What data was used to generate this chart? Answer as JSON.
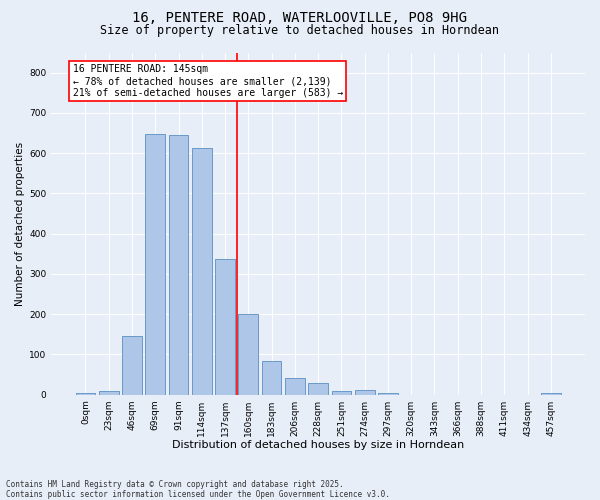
{
  "title1": "16, PENTERE ROAD, WATERLOOVILLE, PO8 9HG",
  "title2": "Size of property relative to detached houses in Horndean",
  "xlabel": "Distribution of detached houses by size in Horndean",
  "ylabel": "Number of detached properties",
  "bar_labels": [
    "0sqm",
    "23sqm",
    "46sqm",
    "69sqm",
    "91sqm",
    "114sqm",
    "137sqm",
    "160sqm",
    "183sqm",
    "206sqm",
    "228sqm",
    "251sqm",
    "274sqm",
    "297sqm",
    "320sqm",
    "343sqm",
    "366sqm",
    "388sqm",
    "411sqm",
    "434sqm",
    "457sqm"
  ],
  "bar_values": [
    5,
    8,
    145,
    648,
    645,
    612,
    338,
    200,
    83,
    42,
    28,
    8,
    11,
    5,
    0,
    0,
    0,
    0,
    0,
    0,
    3
  ],
  "bar_color": "#aec6e8",
  "bar_edgecolor": "#5a8fc2",
  "vline_x": 6.5,
  "vline_color": "red",
  "annotation_text": "16 PENTERE ROAD: 145sqm\n← 78% of detached houses are smaller (2,139)\n21% of semi-detached houses are larger (583) →",
  "annotation_box_color": "white",
  "annotation_box_edgecolor": "red",
  "ylim": [
    0,
    850
  ],
  "yticks": [
    0,
    100,
    200,
    300,
    400,
    500,
    600,
    700,
    800
  ],
  "bg_color": "#e8eef8",
  "plot_bg_color": "#e8eef8",
  "footer": "Contains HM Land Registry data © Crown copyright and database right 2025.\nContains public sector information licensed under the Open Government Licence v3.0.",
  "title1_fontsize": 10,
  "title2_fontsize": 8.5,
  "xlabel_fontsize": 8,
  "ylabel_fontsize": 7.5,
  "tick_fontsize": 6.5,
  "annotation_fontsize": 7,
  "footer_fontsize": 5.5
}
